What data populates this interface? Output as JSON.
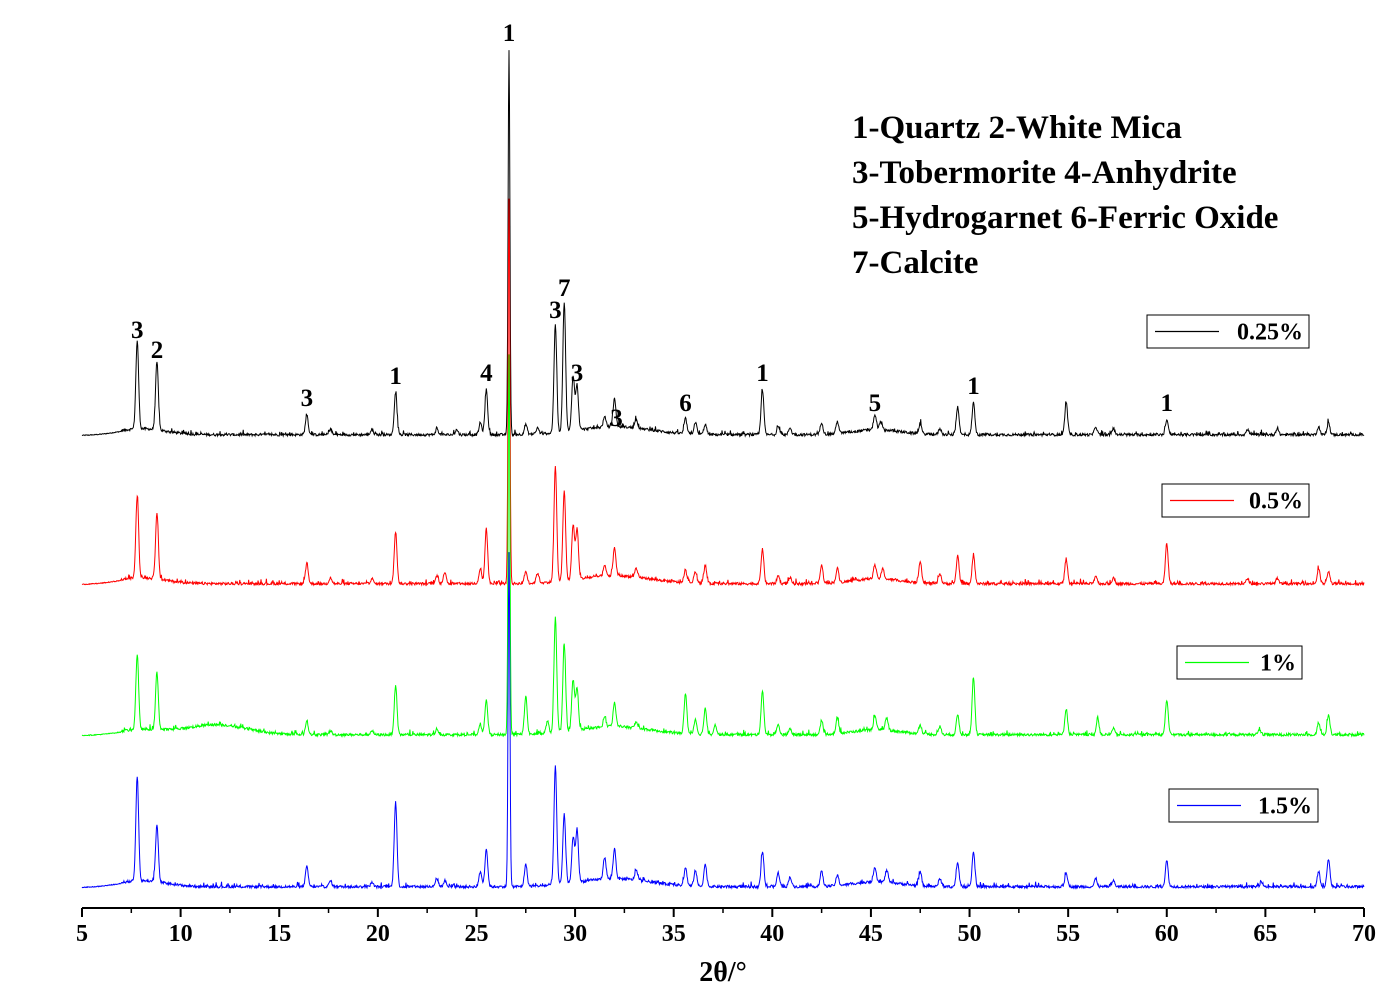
{
  "chart_data": {
    "type": "line",
    "xlabel": "2θ/°",
    "ylabel": "",
    "xlim": [
      5,
      70
    ],
    "xticks": [
      5,
      10,
      15,
      20,
      25,
      30,
      35,
      40,
      45,
      50,
      55,
      60,
      65,
      70
    ],
    "y_axis_visible": false,
    "grid": false,
    "legend_placement": "right of each trace",
    "phase_key": [
      "1-Quartz   2-White Mica",
      "3-Tobermorite   4-Anhydrite",
      "5-Hydrogarnet  6-Ferric Oxide",
      "7-Calcite"
    ],
    "peak_annotations": [
      {
        "label": "3",
        "x": 7.8
      },
      {
        "label": "2",
        "x": 8.8
      },
      {
        "label": "3",
        "x": 16.4
      },
      {
        "label": "1",
        "x": 20.9
      },
      {
        "label": "4",
        "x": 25.5
      },
      {
        "label": "1",
        "x": 26.65
      },
      {
        "label": "3",
        "x": 29.0
      },
      {
        "label": "7",
        "x": 29.45
      },
      {
        "label": "3",
        "x": 30.1
      },
      {
        "label": "3",
        "x": 32.1
      },
      {
        "label": "6",
        "x": 35.6
      },
      {
        "label": "1",
        "x": 39.5
      },
      {
        "label": "5",
        "x": 45.2
      },
      {
        "label": "1",
        "x": 50.2
      },
      {
        "label": "1",
        "x": 60.0
      }
    ],
    "series": [
      {
        "name": "0.25%",
        "color": "#000000",
        "peaks": [
          [
            7.8,
            88
          ],
          [
            8.8,
            68
          ],
          [
            16.4,
            20
          ],
          [
            17.6,
            5
          ],
          [
            19.7,
            5
          ],
          [
            20.9,
            42
          ],
          [
            23.0,
            6
          ],
          [
            24.0,
            5
          ],
          [
            25.2,
            12
          ],
          [
            25.5,
            45
          ],
          [
            26.65,
            385
          ],
          [
            27.5,
            10
          ],
          [
            28.1,
            6
          ],
          [
            29.0,
            108
          ],
          [
            29.45,
            130
          ],
          [
            29.9,
            55
          ],
          [
            30.1,
            45
          ],
          [
            31.5,
            10
          ],
          [
            32.0,
            28
          ],
          [
            33.1,
            8
          ],
          [
            35.6,
            15
          ],
          [
            36.1,
            12
          ],
          [
            36.6,
            10
          ],
          [
            39.5,
            45
          ],
          [
            40.3,
            8
          ],
          [
            40.9,
            7
          ],
          [
            42.5,
            12
          ],
          [
            43.3,
            12
          ],
          [
            45.2,
            15
          ],
          [
            45.5,
            8
          ],
          [
            47.5,
            10
          ],
          [
            48.5,
            6
          ],
          [
            49.4,
            28
          ],
          [
            50.2,
            32
          ],
          [
            54.9,
            32
          ],
          [
            56.4,
            8
          ],
          [
            57.3,
            6
          ],
          [
            60.0,
            15
          ],
          [
            64.1,
            5
          ],
          [
            65.6,
            6
          ],
          [
            67.7,
            8
          ],
          [
            68.2,
            12
          ]
        ],
        "bumps": [
          [
            8.0,
            1.2,
            6
          ],
          [
            32.0,
            1.8,
            8
          ],
          [
            45.3,
            1.2,
            5
          ]
        ]
      },
      {
        "name": "0.5%",
        "color": "#ff0000",
        "peaks": [
          [
            7.8,
            82
          ],
          [
            8.8,
            67
          ],
          [
            16.4,
            20
          ],
          [
            17.6,
            6
          ],
          [
            19.7,
            5
          ],
          [
            20.9,
            52
          ],
          [
            23.0,
            8
          ],
          [
            23.4,
            12
          ],
          [
            25.2,
            14
          ],
          [
            25.5,
            55
          ],
          [
            26.65,
            385
          ],
          [
            27.5,
            12
          ],
          [
            28.1,
            10
          ],
          [
            29.0,
            115
          ],
          [
            29.45,
            90
          ],
          [
            29.9,
            55
          ],
          [
            30.1,
            50
          ],
          [
            31.5,
            10
          ],
          [
            32.0,
            28
          ],
          [
            33.1,
            8
          ],
          [
            35.6,
            12
          ],
          [
            36.1,
            12
          ],
          [
            36.6,
            18
          ],
          [
            39.5,
            35
          ],
          [
            40.3,
            8
          ],
          [
            40.9,
            6
          ],
          [
            42.5,
            18
          ],
          [
            43.3,
            14
          ],
          [
            45.2,
            14
          ],
          [
            45.6,
            10
          ],
          [
            47.5,
            22
          ],
          [
            48.5,
            10
          ],
          [
            49.4,
            28
          ],
          [
            50.2,
            28
          ],
          [
            54.9,
            25
          ],
          [
            56.4,
            8
          ],
          [
            57.3,
            6
          ],
          [
            60.0,
            40
          ],
          [
            64.1,
            5
          ],
          [
            65.6,
            5
          ],
          [
            67.7,
            15
          ],
          [
            68.2,
            12
          ]
        ],
        "bumps": [
          [
            8.0,
            1.2,
            6
          ],
          [
            32.0,
            1.8,
            8
          ],
          [
            45.3,
            1.2,
            5
          ]
        ]
      },
      {
        "name": "1%",
        "color": "#00ff00",
        "peaks": [
          [
            7.8,
            75
          ],
          [
            8.8,
            57
          ],
          [
            16.4,
            14
          ],
          [
            17.6,
            4
          ],
          [
            19.7,
            4
          ],
          [
            20.9,
            48
          ],
          [
            23.0,
            6
          ],
          [
            25.2,
            10
          ],
          [
            25.5,
            35
          ],
          [
            26.65,
            380
          ],
          [
            27.5,
            38
          ],
          [
            28.6,
            12
          ],
          [
            29.0,
            115
          ],
          [
            29.45,
            87
          ],
          [
            29.9,
            50
          ],
          [
            30.1,
            42
          ],
          [
            31.5,
            10
          ],
          [
            32.0,
            25
          ],
          [
            33.1,
            6
          ],
          [
            35.6,
            40
          ],
          [
            36.1,
            15
          ],
          [
            36.6,
            26
          ],
          [
            37.1,
            10
          ],
          [
            39.5,
            44
          ],
          [
            40.3,
            10
          ],
          [
            40.9,
            6
          ],
          [
            42.5,
            12
          ],
          [
            43.3,
            15
          ],
          [
            45.2,
            13
          ],
          [
            45.8,
            12
          ],
          [
            47.5,
            9
          ],
          [
            48.5,
            8
          ],
          [
            49.4,
            20
          ],
          [
            50.2,
            57
          ],
          [
            54.9,
            26
          ],
          [
            56.5,
            16
          ],
          [
            57.3,
            6
          ],
          [
            60.0,
            35
          ],
          [
            64.7,
            5
          ],
          [
            67.7,
            12
          ],
          [
            68.2,
            20
          ]
        ],
        "bumps": [
          [
            11.8,
            1.5,
            10
          ],
          [
            8.0,
            1.2,
            5
          ],
          [
            32.0,
            1.8,
            8
          ],
          [
            45.3,
            1.2,
            5
          ]
        ]
      },
      {
        "name": "1.5%",
        "color": "#0000ff",
        "peaks": [
          [
            7.8,
            105
          ],
          [
            8.8,
            57
          ],
          [
            16.4,
            20
          ],
          [
            17.6,
            6
          ],
          [
            19.7,
            4
          ],
          [
            20.9,
            85
          ],
          [
            23.0,
            8
          ],
          [
            23.4,
            6
          ],
          [
            25.2,
            15
          ],
          [
            25.5,
            38
          ],
          [
            26.65,
            335
          ],
          [
            27.5,
            22
          ],
          [
            29.0,
            118
          ],
          [
            29.45,
            70
          ],
          [
            29.9,
            45
          ],
          [
            30.1,
            53
          ],
          [
            31.5,
            22
          ],
          [
            32.0,
            30
          ],
          [
            33.1,
            10
          ],
          [
            35.6,
            18
          ],
          [
            36.1,
            16
          ],
          [
            36.6,
            22
          ],
          [
            39.5,
            35
          ],
          [
            40.3,
            14
          ],
          [
            40.9,
            10
          ],
          [
            42.5,
            15
          ],
          [
            43.3,
            10
          ],
          [
            45.2,
            15
          ],
          [
            45.8,
            12
          ],
          [
            47.5,
            14
          ],
          [
            48.5,
            8
          ],
          [
            49.4,
            24
          ],
          [
            50.2,
            35
          ],
          [
            54.9,
            14
          ],
          [
            56.4,
            8
          ],
          [
            57.3,
            6
          ],
          [
            60.0,
            26
          ],
          [
            64.8,
            5
          ],
          [
            67.7,
            15
          ],
          [
            68.2,
            28
          ]
        ],
        "bumps": [
          [
            8.0,
            1.2,
            6
          ],
          [
            32.0,
            1.8,
            8
          ],
          [
            45.3,
            1.2,
            5
          ]
        ]
      }
    ]
  }
}
